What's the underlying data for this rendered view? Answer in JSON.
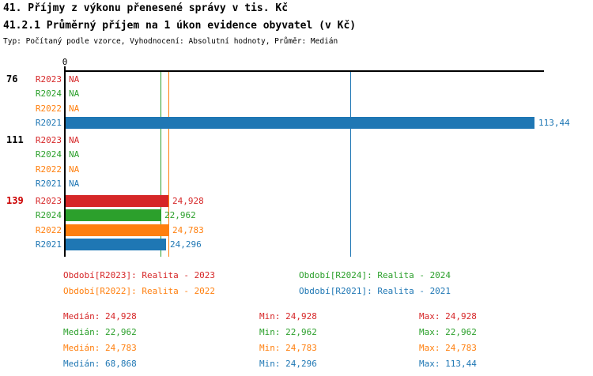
{
  "page": {
    "title1": "41. Příjmy z výkonu přenesené správy v tis. Kč",
    "title2": "41.2.1 Průměrný příjem na 1 úkon evidence obyvatel (v Kč)",
    "meta": "Typ: Počítaný podle vzorce, Vyhodnocení: Absolutní hodnoty, Průměr: Medián"
  },
  "colors": {
    "R2023": "#d62728",
    "R2024": "#2ca02c",
    "R2022": "#ff7f0e",
    "R2021": "#1f77b4",
    "axis": "#000000",
    "group_highlight": "#cc0000"
  },
  "chart_data": {
    "type": "bar",
    "orientation": "horizontal",
    "unit": "Kč",
    "title": "41.2.1 Průměrný příjem na 1 úkon evidence obyvatel (v Kč)",
    "axis": {
      "origin_label": "0",
      "xmin": 0,
      "xmax_visible": 115.9,
      "gridlines": false
    },
    "series_order": [
      "R2023",
      "R2024",
      "R2022",
      "R2021"
    ],
    "groups": [
      {
        "label": "76",
        "label_color": "#000000",
        "bars": [
          {
            "series": "R2023",
            "value": null,
            "display": "NA"
          },
          {
            "series": "R2024",
            "value": null,
            "display": "NA"
          },
          {
            "series": "R2022",
            "value": null,
            "display": "NA"
          },
          {
            "series": "R2021",
            "value": 113.44,
            "display": "113,44"
          }
        ]
      },
      {
        "label": "111",
        "label_color": "#000000",
        "bars": [
          {
            "series": "R2023",
            "value": null,
            "display": "NA"
          },
          {
            "series": "R2024",
            "value": null,
            "display": "NA"
          },
          {
            "series": "R2022",
            "value": null,
            "display": "NA"
          },
          {
            "series": "R2021",
            "value": null,
            "display": "NA"
          }
        ]
      },
      {
        "label": "139",
        "label_color": "#cc0000",
        "bars": [
          {
            "series": "R2023",
            "value": 24.928,
            "display": "24,928"
          },
          {
            "series": "R2024",
            "value": 22.962,
            "display": "22,962"
          },
          {
            "series": "R2022",
            "value": 24.783,
            "display": "24,783"
          },
          {
            "series": "R2021",
            "value": 24.296,
            "display": "24,296"
          }
        ]
      }
    ],
    "median_lines": [
      {
        "series": "R2024",
        "value": 22.962
      },
      {
        "series": "R2022",
        "value": 24.783
      },
      {
        "series": "R2021",
        "value": 68.868
      }
    ]
  },
  "legend": {
    "items": [
      {
        "series": "R2023",
        "text": "Období[R2023]: Realita - 2023"
      },
      {
        "series": "R2024",
        "text": "Období[R2024]: Realita - 2024"
      },
      {
        "series": "R2022",
        "text": "Období[R2022]: Realita - 2022"
      },
      {
        "series": "R2021",
        "text": "Období[R2021]: Realita - 2021"
      }
    ]
  },
  "stats": {
    "median_label": "Medián:",
    "min_label": "Min:",
    "max_label": "Max:",
    "rows": [
      {
        "series": "R2023",
        "median": "24,928",
        "min": "24,928",
        "max": "24,928"
      },
      {
        "series": "R2024",
        "median": "22,962",
        "min": "22,962",
        "max": "22,962"
      },
      {
        "series": "R2022",
        "median": "24,783",
        "min": "24,783",
        "max": "24,783"
      },
      {
        "series": "R2021",
        "median": "68,868",
        "min": "24,296",
        "max": "113,44"
      }
    ]
  }
}
